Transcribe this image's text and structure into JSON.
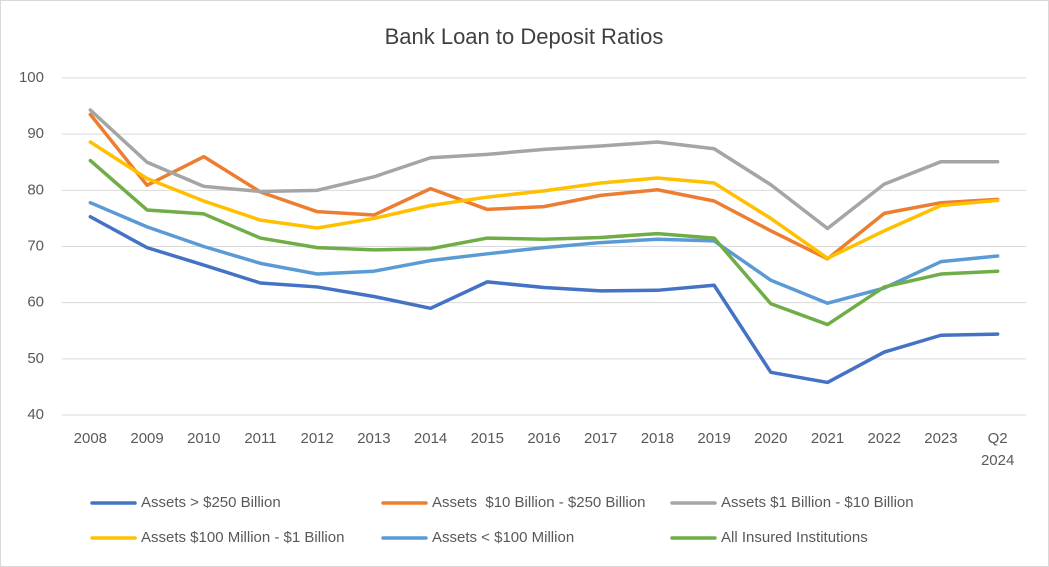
{
  "chart_data": {
    "type": "line",
    "title": "Bank Loan to Deposit Ratios",
    "categories": [
      "2008",
      "2009",
      "2010",
      "2011",
      "2012",
      "2013",
      "2014",
      "2015",
      "2016",
      "2017",
      "2018",
      "2019",
      "2020",
      "2021",
      "2022",
      "2023",
      "Q2 2024"
    ],
    "ylim": [
      40,
      100
    ],
    "yticks": [
      40,
      50,
      60,
      70,
      80,
      90,
      100
    ],
    "grid": true,
    "legend": "bottom",
    "series": [
      {
        "name": "Assets > $250 Billion",
        "color": "#4472c4",
        "values": [
          75.3,
          69.8,
          66.7,
          63.5,
          62.8,
          61.1,
          59.0,
          63.7,
          62.7,
          62.1,
          62.2,
          63.1,
          47.6,
          45.8,
          51.2,
          54.2,
          54.4
        ]
      },
      {
        "name": "Assets  $10 Billion - $250 Billion",
        "color": "#ed7d31",
        "values": [
          93.5,
          80.9,
          86.0,
          79.7,
          76.2,
          75.6,
          80.3,
          76.6,
          77.1,
          79.1,
          80.1,
          78.1,
          72.8,
          67.8,
          75.9,
          77.8,
          78.4
        ]
      },
      {
        "name": "Assets $1 Billion - $10 Billion",
        "color": "#a5a5a5",
        "values": [
          94.3,
          85.0,
          80.7,
          79.8,
          80.0,
          82.4,
          85.8,
          86.4,
          87.3,
          87.9,
          88.6,
          87.4,
          81.0,
          73.2,
          81.1,
          85.1,
          85.1
        ]
      },
      {
        "name": "Assets $100 Million - $1 Billion",
        "color": "#ffc000",
        "values": [
          88.6,
          82.1,
          78.1,
          74.7,
          73.3,
          75.0,
          77.3,
          78.8,
          79.9,
          81.3,
          82.2,
          81.3,
          75.0,
          67.9,
          72.8,
          77.3,
          78.2
        ]
      },
      {
        "name": "Assets < $100 Million",
        "color": "#5b9bd5",
        "values": [
          77.8,
          73.5,
          70.0,
          67.0,
          65.1,
          65.6,
          67.5,
          68.7,
          69.8,
          70.7,
          71.3,
          71.0,
          64.0,
          59.9,
          62.6,
          67.3,
          68.3
        ]
      },
      {
        "name": "All Insured Institutions",
        "color": "#70ad47",
        "values": [
          85.3,
          76.5,
          75.8,
          71.5,
          69.8,
          69.4,
          69.6,
          71.5,
          71.3,
          71.6,
          72.3,
          71.5,
          59.8,
          56.1,
          62.8,
          65.1,
          65.6
        ]
      }
    ]
  }
}
